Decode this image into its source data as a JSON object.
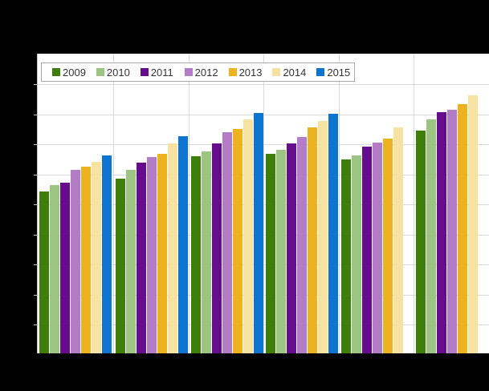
{
  "chart_data": {
    "type": "bar",
    "title": "",
    "xlabel": "",
    "ylabel": "",
    "categories": [
      "",
      "",
      "",
      "",
      "",
      ""
    ],
    "categories_note": "category axis labels are cropped out of the visible screenshot",
    "value_unit": "visible-bar-height-px-from-cropped-baseline",
    "baseline_cropped": true,
    "grid": true,
    "legend_position": "top-left",
    "x_axis_labels_visible": false,
    "y_axis_labels_visible": false,
    "series": [
      {
        "name": "2009",
        "color": "#3e7e0a",
        "values": [
          202,
          218,
          246,
          249,
          242,
          278
        ]
      },
      {
        "name": "2010",
        "color": "#9cc482",
        "values": [
          210,
          229,
          252,
          254,
          247,
          292
        ]
      },
      {
        "name": "2011",
        "color": "#660d8e",
        "values": [
          213,
          238,
          262,
          262,
          258,
          301
        ]
      },
      {
        "name": "2012",
        "color": "#b47cc7",
        "values": [
          229,
          245,
          276,
          270,
          263,
          304
        ]
      },
      {
        "name": "2013",
        "color": "#ecb220",
        "values": [
          233,
          249,
          280,
          282,
          268,
          311
        ]
      },
      {
        "name": "2014",
        "color": "#f7e2a2",
        "values": [
          239,
          262,
          292,
          290,
          282,
          322
        ]
      },
      {
        "name": "2015",
        "color": "#0d75cf",
        "values": [
          247,
          271,
          300,
          299,
          null,
          null
        ]
      }
    ]
  },
  "palette": {
    "background": "#000000",
    "plot_background": "#ffffff",
    "gridline": "#d9d9d9",
    "axis": "#c6c6c6",
    "legend_border": "#a9a9a9",
    "legend_text": "#333333"
  }
}
